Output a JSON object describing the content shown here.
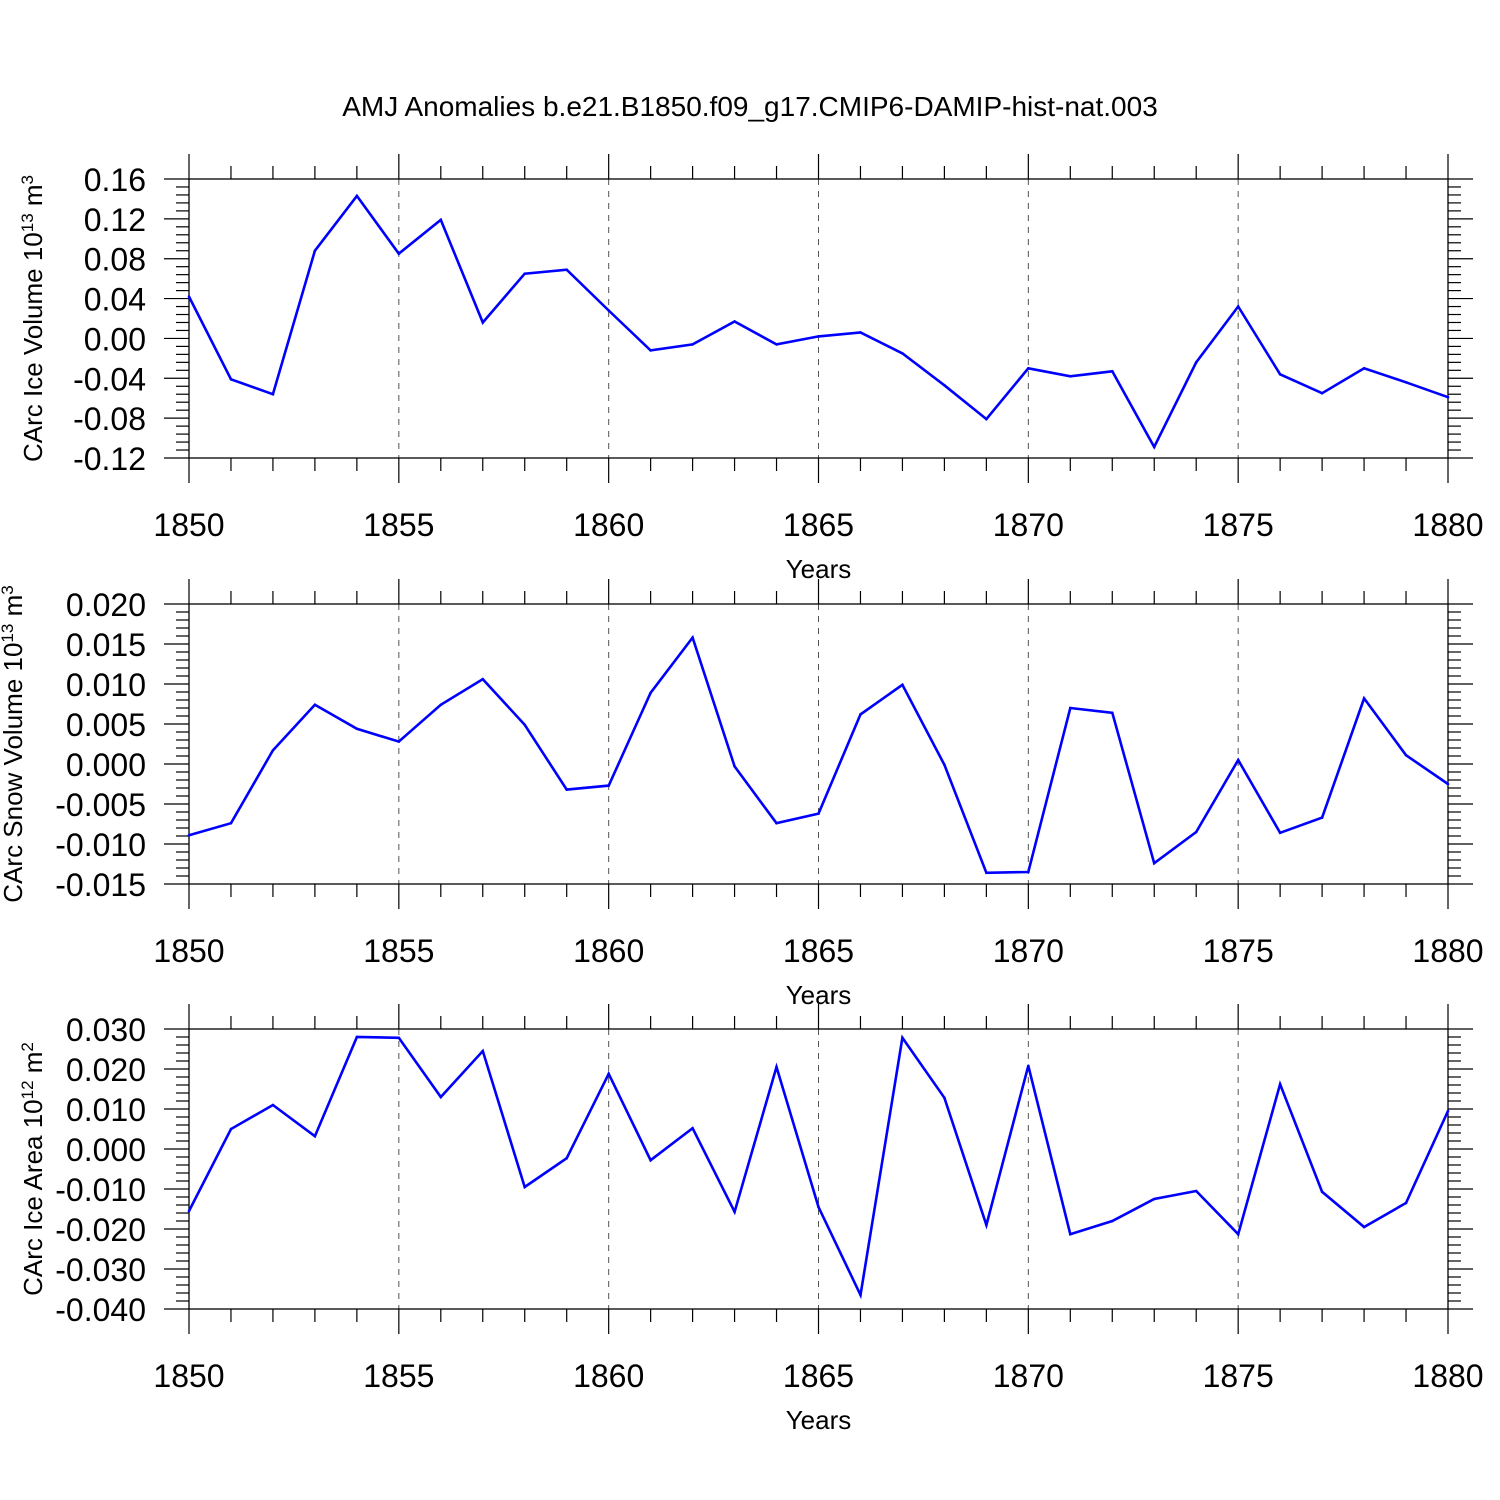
{
  "figure": {
    "title": "AMJ Anomalies b.e21.B1850.f09_g17.CMIP6-DAMIP-hist-nat.003"
  },
  "chart_data": [
    {
      "type": "line",
      "ylabel": {
        "main": "CArc Ice Volume 10",
        "exponent": "13",
        "unit": " m",
        "unit_exponent": "3"
      },
      "xlabel": "Years",
      "xlim": [
        1850,
        1880
      ],
      "ylim": [
        -0.12,
        0.16
      ],
      "xticks": [
        "1850",
        "1855",
        "1860",
        "1865",
        "1870",
        "1875",
        "1880"
      ],
      "yticks": [
        "0.16",
        "0.12",
        "0.08",
        "0.04",
        "0.00",
        "-0.04",
        "-0.08",
        "-0.12"
      ],
      "grid": "vertical dashed at major x ticks",
      "line_color": "#0000ff",
      "x": [
        1850,
        1851,
        1852,
        1853,
        1854,
        1855,
        1856,
        1857,
        1858,
        1859,
        1860,
        1861,
        1862,
        1863,
        1864,
        1865,
        1866,
        1867,
        1868,
        1869,
        1870,
        1871,
        1872,
        1873,
        1874,
        1875,
        1876,
        1877,
        1878,
        1879,
        1880
      ],
      "y": [
        0.042,
        -0.041,
        -0.056,
        0.088,
        0.143,
        0.085,
        0.119,
        0.016,
        0.065,
        0.069,
        0.028,
        -0.012,
        -0.006,
        0.017,
        -0.006,
        0.002,
        0.006,
        -0.015,
        -0.047,
        -0.081,
        -0.03,
        -0.038,
        -0.033,
        -0.109,
        -0.024,
        0.032,
        -0.036,
        -0.055,
        -0.03,
        -0.044,
        -0.059
      ]
    },
    {
      "type": "line",
      "ylabel": {
        "main": "CArc Snow Volume 10",
        "exponent": "13",
        "unit": " m",
        "unit_exponent": "3"
      },
      "xlabel": "Years",
      "xlim": [
        1850,
        1880
      ],
      "ylim": [
        -0.015,
        0.02
      ],
      "xticks": [
        "1850",
        "1855",
        "1860",
        "1865",
        "1870",
        "1875",
        "1880"
      ],
      "yticks": [
        "0.020",
        "0.015",
        "0.010",
        "0.005",
        "0.000",
        "-0.005",
        "-0.010",
        "-0.015"
      ],
      "grid": "vertical dashed at major x ticks",
      "line_color": "#0000ff",
      "x": [
        1850,
        1851,
        1852,
        1853,
        1854,
        1855,
        1856,
        1857,
        1858,
        1859,
        1860,
        1861,
        1862,
        1863,
        1864,
        1865,
        1866,
        1867,
        1868,
        1869,
        1870,
        1871,
        1872,
        1873,
        1874,
        1875,
        1876,
        1877,
        1878,
        1879,
        1880
      ],
      "y": [
        -0.0089,
        -0.0074,
        0.0017,
        0.0074,
        0.0044,
        0.0028,
        0.0074,
        0.0106,
        0.0049,
        -0.0032,
        -0.0027,
        0.0089,
        0.0158,
        -0.0003,
        -0.0074,
        -0.0062,
        0.0062,
        0.0099,
        -0.0001,
        -0.0136,
        -0.0135,
        0.007,
        0.0064,
        -0.0124,
        -0.0085,
        0.0005,
        -0.0086,
        -0.0067,
        0.0082,
        0.0011,
        -0.0025
      ]
    },
    {
      "type": "line",
      "ylabel": {
        "main": "CArc Ice Area 10",
        "exponent": "12",
        "unit": " m",
        "unit_exponent": "2"
      },
      "xlabel": "Years",
      "xlim": [
        1850,
        1880
      ],
      "ylim": [
        -0.04,
        0.03
      ],
      "xticks": [
        "1850",
        "1855",
        "1860",
        "1865",
        "1870",
        "1875",
        "1880"
      ],
      "yticks": [
        "0.030",
        "0.020",
        "0.010",
        "0.000",
        "-0.010",
        "-0.020",
        "-0.030",
        "-0.040"
      ],
      "grid": "vertical dashed at major x ticks",
      "line_color": "#0000ff",
      "x": [
        1850,
        1851,
        1852,
        1853,
        1854,
        1855,
        1856,
        1857,
        1858,
        1859,
        1860,
        1861,
        1862,
        1863,
        1864,
        1865,
        1866,
        1867,
        1868,
        1869,
        1870,
        1871,
        1872,
        1873,
        1874,
        1875,
        1876,
        1877,
        1878,
        1879,
        1880
      ],
      "y": [
        -0.0155,
        0.005,
        0.011,
        0.0032,
        0.028,
        0.0278,
        0.013,
        0.0245,
        -0.0095,
        -0.0023,
        0.0188,
        -0.0028,
        0.0052,
        -0.0157,
        0.0205,
        -0.0145,
        -0.0365,
        0.0278,
        0.0128,
        -0.019,
        0.0208,
        -0.0213,
        -0.018,
        -0.0125,
        -0.0105,
        -0.0213,
        0.0162,
        -0.0107,
        -0.0195,
        -0.0135,
        0.0095
      ]
    }
  ]
}
